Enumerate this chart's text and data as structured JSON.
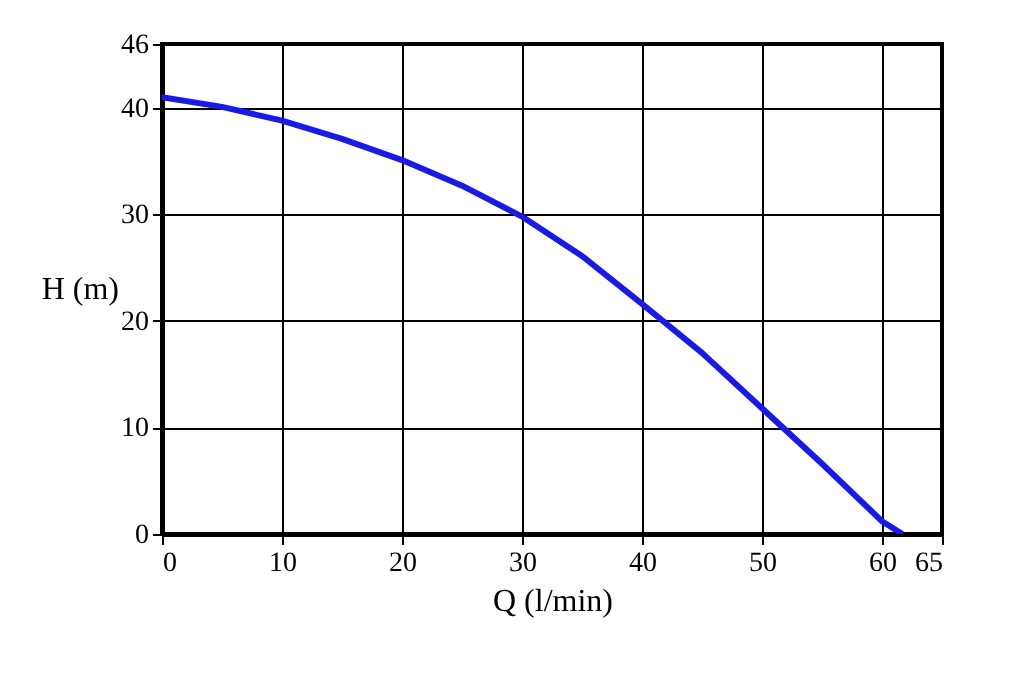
{
  "chart_data": {
    "type": "line",
    "xlabel": "Q (l/min)",
    "ylabel": "H (m)",
    "x": [
      0,
      5,
      10,
      15,
      20,
      25,
      30,
      35,
      40,
      45,
      50,
      55,
      60,
      61.7
    ],
    "series": [
      {
        "color": "#1a1ae6",
        "values": [
          41,
          40.1,
          38.8,
          37.1,
          35.1,
          32.7,
          29.8,
          26.1,
          21.6,
          17,
          11.8,
          6.6,
          1.2,
          0
        ]
      }
    ],
    "xlim": [
      0,
      65
    ],
    "xticks": [
      0,
      10,
      20,
      30,
      40,
      50,
      60,
      65
    ],
    "ylim": [
      0,
      46
    ],
    "yticks": [
      0,
      10,
      20,
      30,
      40,
      46
    ],
    "grid": true,
    "marker": "none",
    "line_style": "solid"
  }
}
